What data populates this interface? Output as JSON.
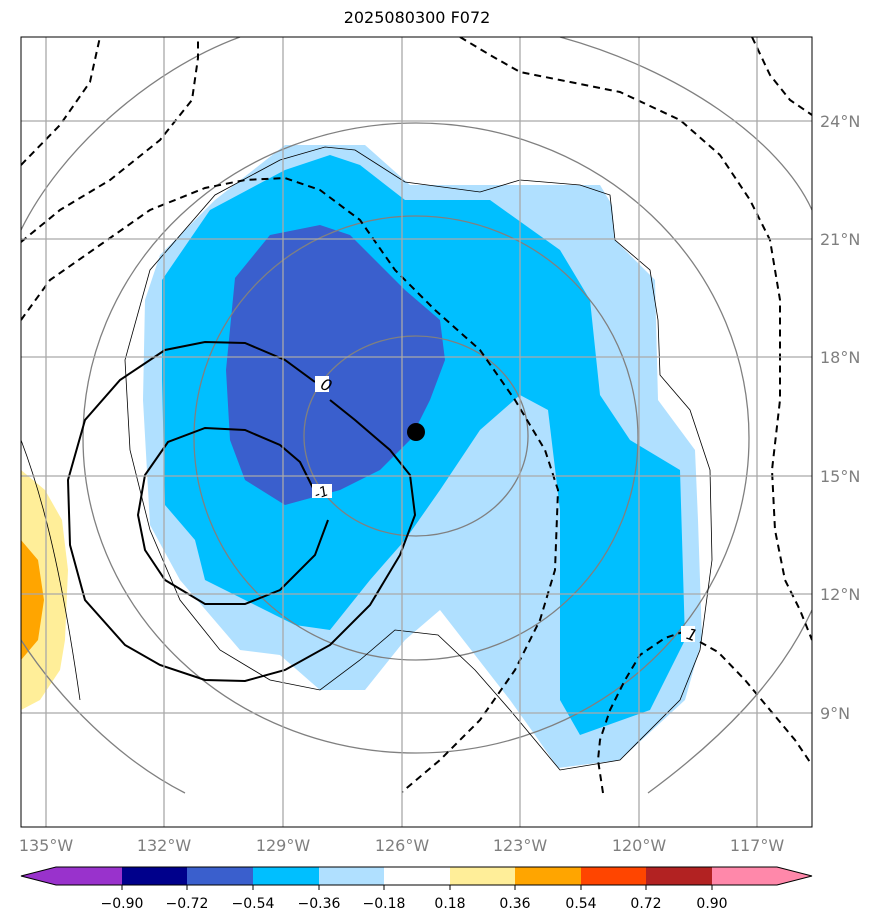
{
  "title": "2025080300 F072",
  "map": {
    "lon_labels": [
      "135°W",
      "132°W",
      "129°W",
      "126°W",
      "123°W",
      "120°W",
      "117°W"
    ],
    "lat_labels": [
      "24°N",
      "21°N",
      "18°N",
      "15°N",
      "12°N",
      "9°N"
    ],
    "lon_values": [
      -135,
      -132,
      -129,
      -126,
      -123,
      -120,
      -117
    ],
    "lat_values": [
      24,
      21,
      18,
      15,
      12,
      9
    ],
    "extent": {
      "lon_min": -135.0,
      "lon_max": -115.0,
      "lat_min": 6.0,
      "lat_max": 26.0
    },
    "storm_center": {
      "lon": -125.6,
      "lat": 16.1
    },
    "contour_labels": [
      {
        "text": "0",
        "lon": -127.9,
        "lat": 17.3
      },
      {
        "text": "-1",
        "lon": -127.9,
        "lat": 14.5
      },
      {
        "text": "1",
        "lon": -118.3,
        "lat": 11.0
      }
    ]
  },
  "colorbar": {
    "ticks": [
      "−0.90",
      "−0.72",
      "−0.54",
      "−0.36",
      "−0.18",
      "0.18",
      "0.36",
      "0.54",
      "0.72",
      "0.90"
    ],
    "colors": [
      "#9932cc",
      "#00008b",
      "#3a5fcd",
      "#00bfff",
      "#b0e0ff",
      "#ffffff",
      "#ffee99",
      "#ffa500",
      "#ff4500",
      "#b22222",
      "#ff88aa"
    ]
  }
}
